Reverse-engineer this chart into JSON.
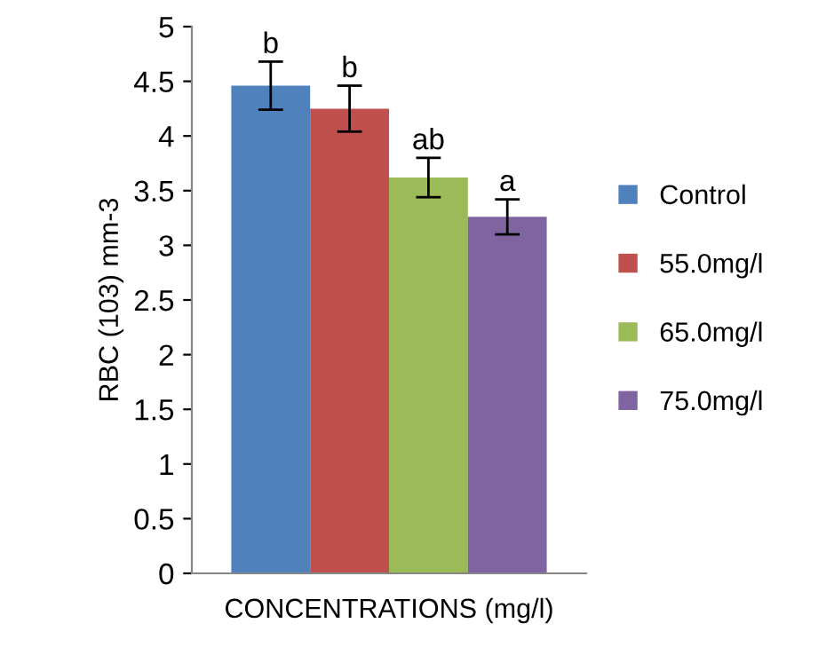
{
  "chart_data": {
    "type": "bar",
    "xlabel": "CONCENTRATIONS (mg/l)",
    "ylabel": "RBC (103) mm-3",
    "categories": [
      null
    ],
    "series": [
      {
        "name": "Control",
        "color": "#4f81bd",
        "values": [
          4.46
        ],
        "errors": [
          0.22
        ]
      },
      {
        "name": "55.0mg/l",
        "color": "#c0504d",
        "values": [
          4.25
        ],
        "errors": [
          0.21
        ]
      },
      {
        "name": "65.0mg/l",
        "color": "#9bbb59",
        "values": [
          3.62
        ],
        "errors": [
          0.18
        ]
      },
      {
        "name": "75.0mg/l",
        "color": "#8064a2",
        "values": [
          3.26
        ],
        "errors": [
          0.16
        ]
      }
    ],
    "annotations": [
      {
        "text": "b",
        "y": 4.68
      },
      {
        "text": "b",
        "y": 4.46
      },
      {
        "text": "ab",
        "y": 3.8
      },
      {
        "text": "a",
        "y": 3.42
      }
    ],
    "ylim": [
      0,
      5
    ],
    "yticks": [
      0,
      0.5,
      1,
      1.5,
      2,
      2.5,
      3,
      3.5,
      4,
      4.5,
      5
    ],
    "grid": false,
    "legend": "right"
  }
}
